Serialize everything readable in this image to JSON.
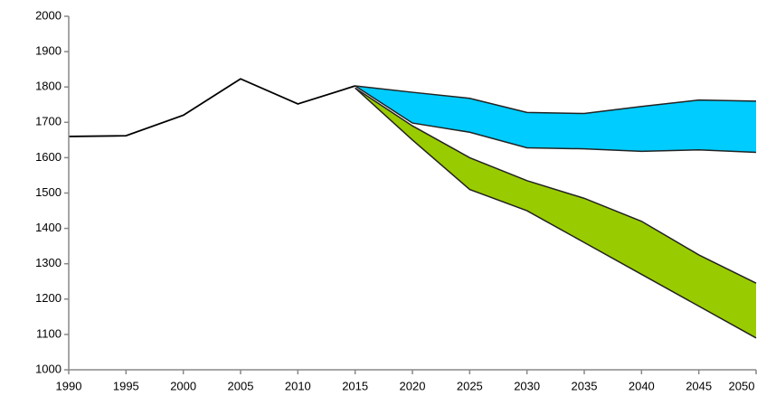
{
  "chart_data": {
    "type": "line",
    "x": [
      1990,
      1995,
      2000,
      2005,
      2010,
      2015,
      2020,
      2025,
      2030,
      2035,
      2040,
      2045,
      2050
    ],
    "xlim": [
      1990,
      2050
    ],
    "xticks": [
      1990,
      1995,
      2000,
      2005,
      2010,
      2015,
      2020,
      2025,
      2030,
      2035,
      2040,
      2045,
      2050
    ],
    "ylim": [
      1000,
      2000
    ],
    "yticks": [
      1000,
      1100,
      1200,
      1300,
      1400,
      1500,
      1600,
      1700,
      1800,
      1900,
      2000
    ],
    "grid": false,
    "series": [
      {
        "color": "#000000",
        "values": [
          1660,
          1662,
          1720,
          1823,
          1752,
          1803,
          null,
          null,
          null,
          null,
          null,
          null,
          null
        ]
      }
    ],
    "bands": [
      {
        "color": "#00ccff",
        "upper": [
          null,
          null,
          null,
          null,
          null,
          1803,
          1785,
          1768,
          1728,
          1725,
          1745,
          1763,
          1760
        ],
        "lower": [
          null,
          null,
          null,
          null,
          null,
          1803,
          1698,
          1672,
          1628,
          1625,
          1618,
          1622,
          1615
        ]
      },
      {
        "color": "#99cc00",
        "upper": [
          null,
          null,
          null,
          null,
          null,
          1797,
          1690,
          1600,
          1535,
          1485,
          1420,
          1325,
          1245
        ],
        "lower": [
          null,
          null,
          null,
          null,
          null,
          1797,
          1650,
          1510,
          1450,
          1360,
          1270,
          1180,
          1090
        ]
      }
    ]
  }
}
